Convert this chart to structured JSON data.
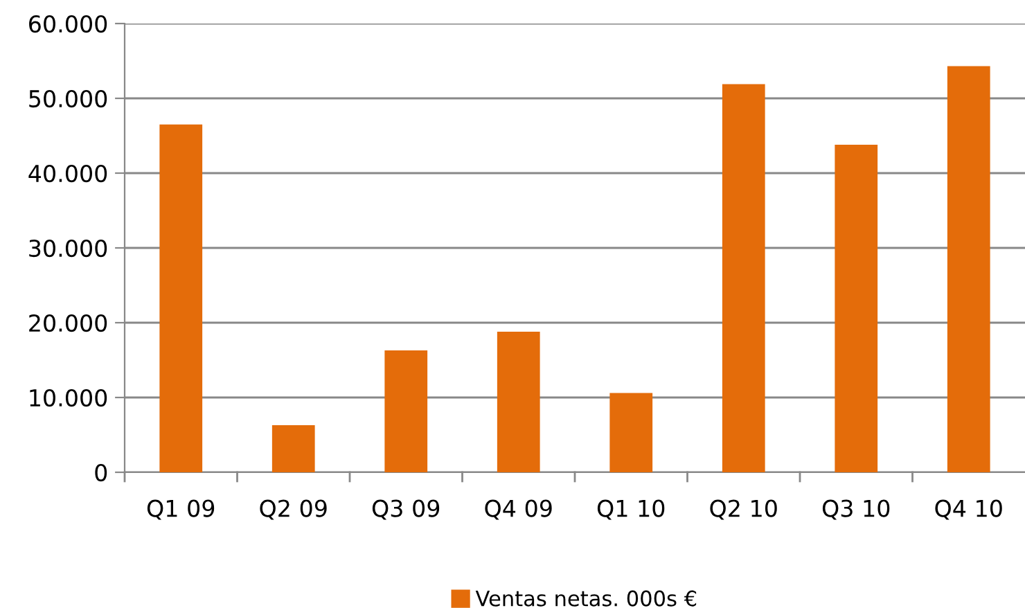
{
  "chart_data": {
    "type": "bar",
    "categories": [
      "Q1 09",
      "Q2 09",
      "Q3 09",
      "Q4 09",
      "Q1 10",
      "Q2 10",
      "Q3 10",
      "Q4 10"
    ],
    "series": [
      {
        "name": "Ventas netas. 000s €",
        "color": "#e46c0a",
        "values": [
          46500,
          6300,
          16300,
          18800,
          10600,
          51900,
          43800,
          54300
        ]
      }
    ],
    "ylim": [
      0,
      60000
    ],
    "yticks": [
      0,
      {
        "value": 10000,
        "label": "10.000"
      },
      {
        "value": 20000,
        "label": "20.000"
      },
      {
        "value": 30000,
        "label": "30.000"
      },
      {
        "value": 40000,
        "label": "40.000"
      },
      {
        "value": 50000,
        "label": "50.000"
      },
      {
        "value": 60000,
        "label": "60.000"
      }
    ],
    "grid": "y",
    "legend": "bottom"
  }
}
